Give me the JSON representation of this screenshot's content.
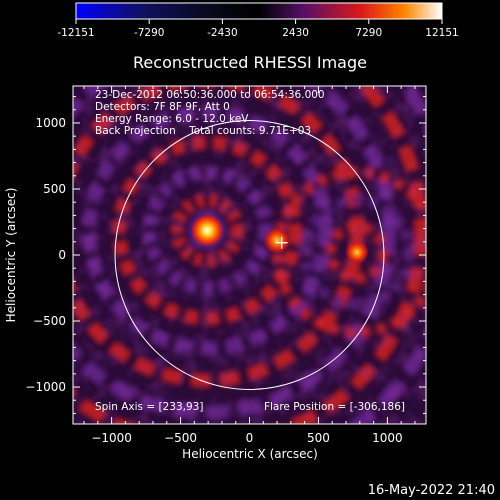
{
  "colorbar": {
    "tick_labels": [
      "-12151",
      "-7290",
      "-2430",
      "2430",
      "7290",
      "12151"
    ],
    "range": [
      -12151,
      12151
    ],
    "colors": [
      "#0000ff",
      "#0a0a44",
      "#000000",
      "#550a66",
      "#cc1010",
      "#ff6600",
      "#ffcc00",
      "#ffffff"
    ]
  },
  "chart_data": {
    "type": "heatmap",
    "title": "Reconstructed RHESSI Image",
    "xlabel": "Heliocentric X (arcsec)",
    "ylabel": "Heliocentric Y (arcsec)",
    "xlim": [
      -1280,
      1280
    ],
    "ylim": [
      -1280,
      1280
    ],
    "x_ticks": [
      -1000,
      -500,
      0,
      500,
      1000
    ],
    "x_tick_labels": [
      "−1000",
      "−500",
      "0",
      "500",
      "1000"
    ],
    "y_ticks": [
      1000,
      500,
      0,
      -500,
      -1000
    ],
    "y_tick_labels": [
      "1000",
      "500",
      "0",
      "−500",
      "−1000"
    ],
    "info_lines": [
      "23-Dec-2012 06:50:36.000 to 06:54:36.000",
      "Detectors: 7F 8F 9F, Att 0",
      "Energy Range: 6.0 - 12.0 keV",
      "Back Projection    Total counts: 9.71E+03"
    ],
    "spin_axis": "Spin Axis = [233,93]",
    "flare_position": "Flare Position = [-306,186]",
    "sources": [
      {
        "x": -306,
        "y": 186,
        "peak": 12151
      },
      {
        "x": 200,
        "y": 110,
        "peak": 9000
      },
      {
        "x": 780,
        "y": 20,
        "peak": 7300
      }
    ],
    "limb_circle": {
      "x": 0,
      "y": 0,
      "r": 975
    },
    "spin_axis_point": {
      "x": 233,
      "y": 93
    }
  },
  "footer_timestamp": "16-May-2022 21:40"
}
